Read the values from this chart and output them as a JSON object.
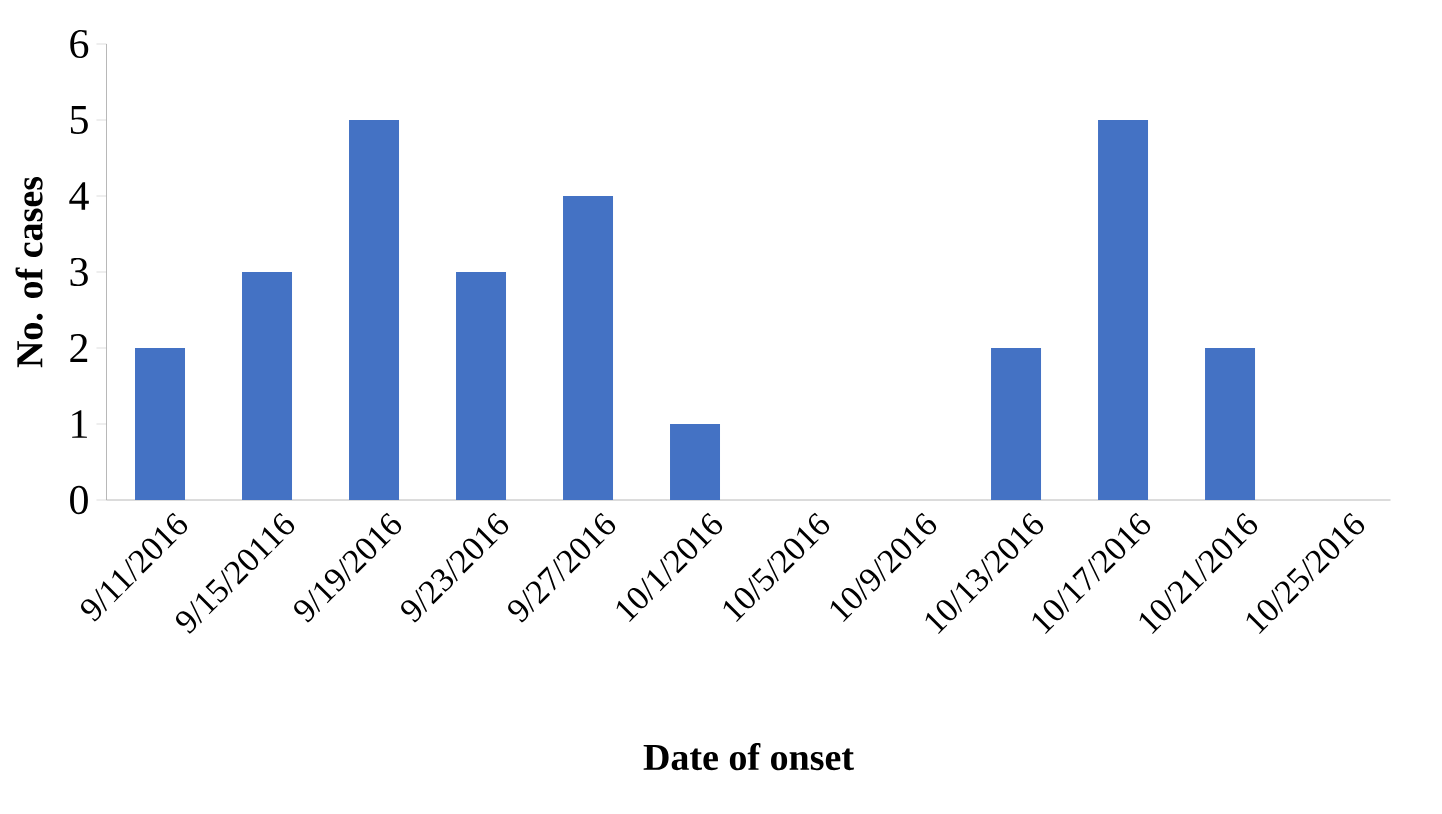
{
  "chart_data": {
    "type": "bar",
    "xlabel": "Date of onset",
    "ylabel": "No. of cases",
    "categories": [
      "9/11/2016",
      "9/15/20116",
      "9/19/2016",
      "9/23/2016",
      "9/27/2016",
      "10/1/2016",
      "10/5/2016",
      "10/9/2016",
      "10/13/2016",
      "10/17/2016",
      "10/21/2016",
      "10/25/2016"
    ],
    "values": [
      2,
      3,
      5,
      3,
      4,
      1,
      0,
      0,
      2,
      5,
      2,
      0
    ],
    "color": "#4472c4",
    "ylim": [
      0,
      6
    ],
    "yticks": [
      0,
      1,
      2,
      3,
      4,
      5,
      6
    ],
    "grid": false
  }
}
